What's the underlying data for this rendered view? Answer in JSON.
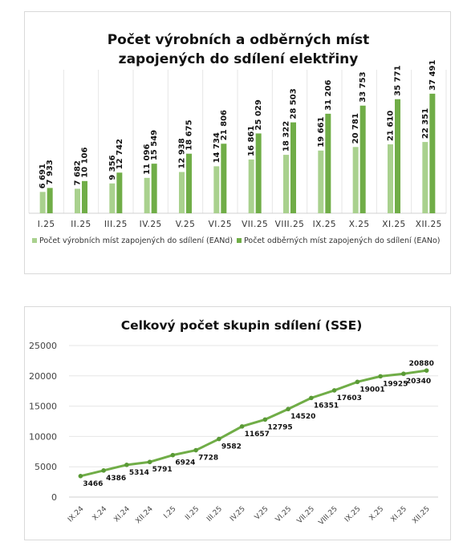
{
  "chart_data": [
    {
      "type": "bar",
      "title_lines": [
        "Počet výrobních a odběrných míst",
        "zapojených do sdílení elektřiny"
      ],
      "categories": [
        "I.25",
        "II.25",
        "III.25",
        "IV.25",
        "V.25",
        "VI.25",
        "VII.25",
        "VIII.25",
        "IX.25",
        "X.25",
        "XI.25",
        "XII.25"
      ],
      "series": [
        {
          "name": "Počet výrobních míst zapojených do sdílení (EANd)",
          "color": "#a9d18e",
          "values": [
            6691,
            7682,
            9356,
            11096,
            12938,
            14734,
            16861,
            18322,
            19661,
            20781,
            21610,
            22351
          ],
          "labels": [
            "6 691",
            "7 682",
            "9 356",
            "11 096",
            "12 938",
            "14 734",
            "16 861",
            "18 322",
            "19 661",
            "20 781",
            "21 610",
            "22 351"
          ]
        },
        {
          "name": "Počet odběrných míst zapojených do sdílení (EANo)",
          "color": "#70ad47",
          "values": [
            7933,
            10106,
            12742,
            15549,
            18675,
            21806,
            25029,
            28503,
            31206,
            33753,
            35771,
            37491
          ],
          "labels": [
            "7 933",
            "10 106",
            "12 742",
            "15 549",
            "18 675",
            "21 806",
            "25 029",
            "28 503",
            "31 206",
            "33 753",
            "35 771",
            "37 491"
          ]
        }
      ],
      "ylim": [
        0,
        45000
      ],
      "grid": true,
      "legend": "bottom"
    },
    {
      "type": "line",
      "title": "Celkový počet skupin sdílení (SSE)",
      "categories": [
        "IX.24",
        "X.24",
        "XI.24",
        "XII.24",
        "I.25",
        "II.25",
        "III.25",
        "IV.25",
        "V.25",
        "VI.25",
        "VII.25",
        "VIII.25",
        "IX.25",
        "X.25",
        "XI.25",
        "XII.25"
      ],
      "series": [
        {
          "color": "#70ad47",
          "values": [
            3466,
            4386,
            5314,
            5791,
            6924,
            7728,
            9582,
            11657,
            12795,
            14520,
            16351,
            17603,
            19001,
            19925,
            20340,
            20880
          ]
        }
      ],
      "yticks": [
        "0",
        "5000",
        "10000",
        "15000",
        "20000",
        "25000"
      ],
      "ylim": [
        0,
        25000
      ],
      "grid": true
    }
  ]
}
